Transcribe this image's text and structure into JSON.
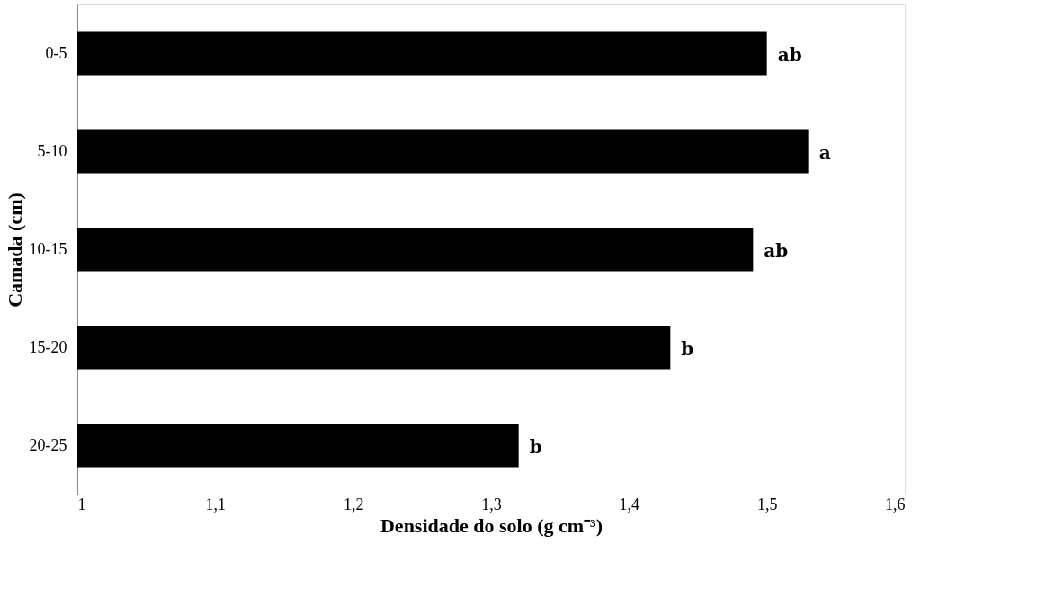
{
  "chart_data": {
    "type": "bar",
    "orientation": "horizontal",
    "xlabel": "Densidade do solo (g cm⁻³)",
    "ylabel": "Camada (cm)",
    "categories": [
      "0-5",
      "5-10",
      "10-15",
      "15-20",
      "20-25"
    ],
    "values": [
      1.5,
      1.53,
      1.49,
      1.43,
      1.32
    ],
    "color": "#000000",
    "xlim": [
      1,
      1.6
    ],
    "xticks": [
      1,
      {
        "value": 1.1,
        "label": "1,1"
      },
      {
        "value": 1.2,
        "label": "1,2"
      },
      {
        "value": 1.3,
        "label": "1,3"
      },
      {
        "value": 1.4,
        "label": "1,4"
      },
      {
        "value": 1.5,
        "label": "1,5"
      },
      {
        "value": 1.6,
        "label": "1,6"
      }
    ],
    "annotations": [
      {
        "text": "ab",
        "x": 1.5,
        "y": "0-5"
      },
      {
        "text": "a",
        "x": 1.53,
        "y": "5-10"
      },
      {
        "text": "ab",
        "x": 1.49,
        "y": "10-15"
      },
      {
        "text": "b",
        "x": 1.43,
        "y": "15-20"
      },
      {
        "text": "b",
        "x": 1.32,
        "y": "20-25"
      }
    ],
    "grid": false
  }
}
